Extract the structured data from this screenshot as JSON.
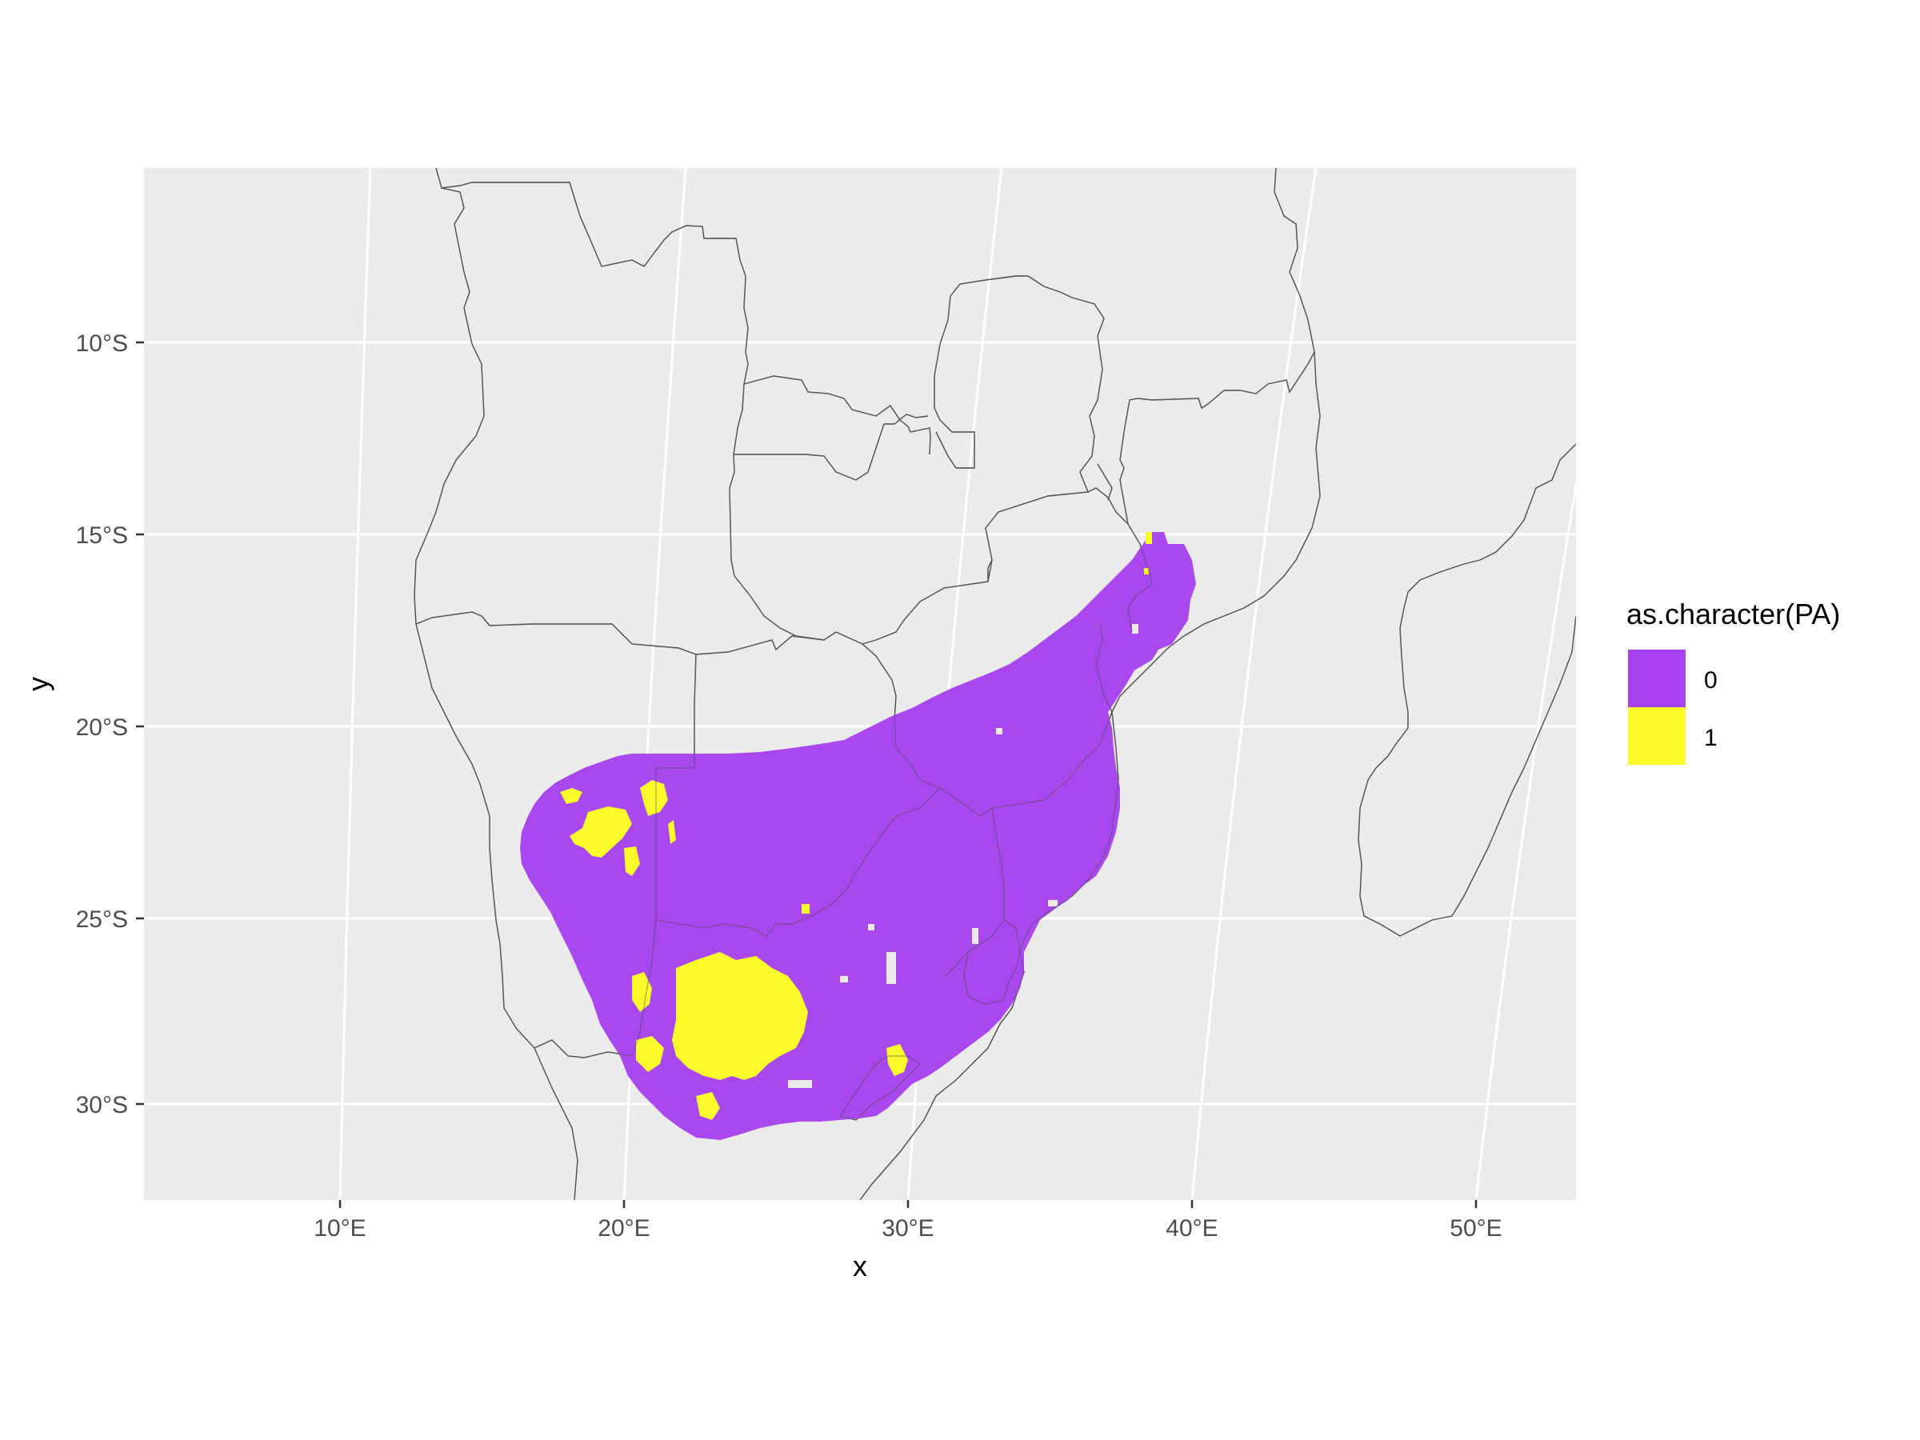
{
  "chart_data": {
    "type": "map",
    "xlabel": "x",
    "ylabel": "y",
    "x_ticks": [
      "10°E",
      "20°E",
      "30°E",
      "40°E",
      "50°E"
    ],
    "y_ticks": [
      "10°S",
      "15°S",
      "20°S",
      "25°S",
      "30°S"
    ],
    "legend": {
      "title": "as.character(PA)",
      "entries": [
        {
          "label": "0",
          "color": "#a742ee"
        },
        {
          "label": "1",
          "color": "#fbfb2c"
        }
      ]
    },
    "panel_background": "#ebebeb",
    "grid_color": "#ffffff",
    "border_color": "#555555",
    "region": "Southern Africa raster of presence (1) / absence (0)"
  }
}
